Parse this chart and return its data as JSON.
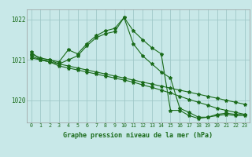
{
  "title": "Graphe pression niveau de la mer (hPa)",
  "bg_color": "#c8e8e8",
  "grid_color": "#a0c8c8",
  "line_color": "#1a6b1a",
  "x_ticks": [
    0,
    1,
    2,
    3,
    4,
    5,
    6,
    7,
    8,
    9,
    10,
    11,
    12,
    13,
    14,
    15,
    16,
    17,
    18,
    19,
    20,
    21,
    22,
    23
  ],
  "ylim": [
    1019.45,
    1022.25
  ],
  "yticks": [
    1020,
    1021,
    1022
  ],
  "lines": [
    [
      1021.2,
      1021.0,
      1021.0,
      1020.95,
      1021.25,
      1021.15,
      1021.4,
      1021.6,
      1021.72,
      1021.78,
      1022.05,
      1021.72,
      1021.5,
      1021.3,
      1021.15,
      1019.75,
      1019.75,
      1019.62,
      1019.55,
      1019.58,
      1019.65,
      1019.68,
      1019.65,
      1019.65
    ],
    [
      1021.1,
      1021.0,
      1020.95,
      1020.85,
      1020.8,
      1020.75,
      1020.7,
      1020.65,
      1020.6,
      1020.55,
      1020.5,
      1020.45,
      1020.38,
      1020.32,
      1020.25,
      1020.18,
      1020.1,
      1020.02,
      1019.95,
      1019.88,
      1019.8,
      1019.75,
      1019.7,
      1019.65
    ],
    [
      1021.05,
      1021.0,
      1020.95,
      1020.9,
      1020.85,
      1020.8,
      1020.75,
      1020.7,
      1020.65,
      1020.6,
      1020.55,
      1020.5,
      1020.45,
      1020.4,
      1020.35,
      1020.3,
      1020.25,
      1020.2,
      1020.15,
      1020.1,
      1020.05,
      1020.0,
      1019.95,
      1019.9
    ],
    [
      1021.15,
      1021.05,
      1021.0,
      1020.9,
      1021.0,
      1021.1,
      1021.35,
      1021.55,
      1021.65,
      1021.7,
      1022.05,
      1021.4,
      1021.1,
      1020.9,
      1020.7,
      1020.55,
      1019.8,
      1019.7,
      1019.58,
      1019.58,
      1019.62,
      1019.65,
      1019.62,
      1019.62
    ]
  ]
}
